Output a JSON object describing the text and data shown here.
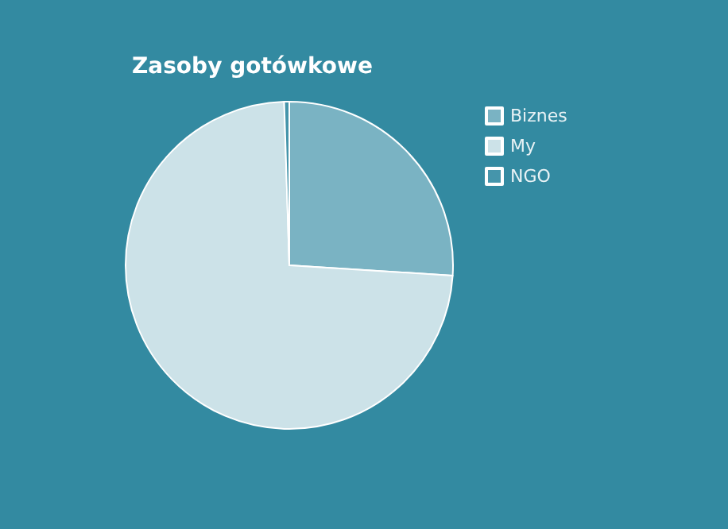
{
  "chart_data": {
    "type": "pie",
    "title": "Zasoby gotówkowe",
    "categories": [
      "Biznes",
      "My",
      "NGO"
    ],
    "values": [
      26,
      73.5,
      0.5
    ],
    "colors": [
      "#7ab3c3",
      "#cce2e8",
      "#4595ab"
    ],
    "legend": "top right"
  }
}
